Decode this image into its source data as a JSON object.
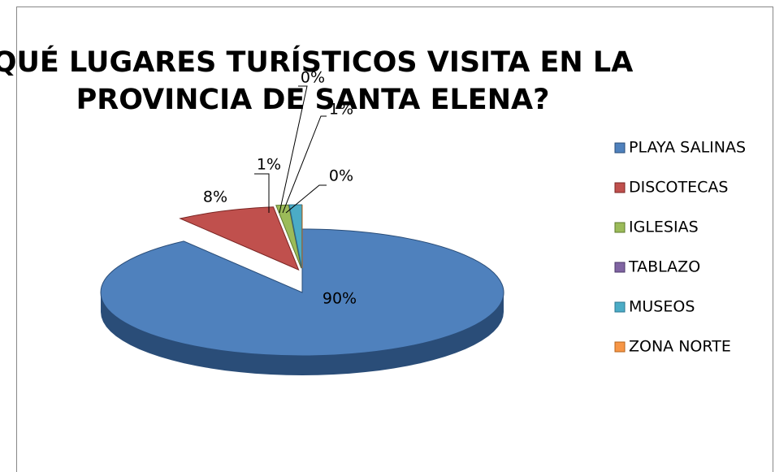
{
  "chart_data": {
    "type": "pie3d",
    "title": [
      "QUÉ LUGARES TURÍSTICOS VISITA EN LA",
      "PROVINCIA DE SANTA ELENA?"
    ],
    "categories": [
      "PLAYA SALINAS",
      "DISCOTECAS",
      "IGLESIAS",
      "TABLAZO",
      "MUSEOS",
      "ZONA NORTE"
    ],
    "values": [
      90,
      8,
      1,
      0,
      1,
      0
    ],
    "value_labels": [
      "90%",
      "8%",
      "1%",
      "0%",
      "1%",
      "0%"
    ],
    "colors": [
      "#4f81bd",
      "#c0504d",
      "#9bbb59",
      "#8064a2",
      "#4bacc6",
      "#f79646"
    ],
    "side_colors": [
      "#2a4d78",
      "#7a2523",
      "#5e7a2c",
      "#4b3868",
      "#2b7690",
      "#b5641c"
    ],
    "legend": "right"
  }
}
